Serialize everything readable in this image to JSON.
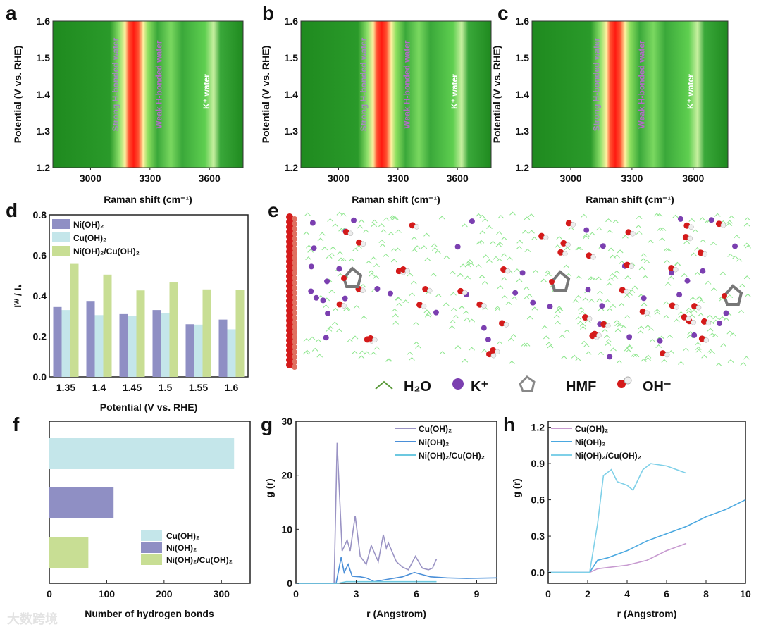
{
  "panel_labels": [
    "a",
    "b",
    "c",
    "d",
    "e",
    "f",
    "g",
    "h"
  ],
  "heatmaps": [
    {
      "label": "a",
      "xlabel": "Raman shift (cm⁻¹)",
      "ylabel": "Potential (V vs. RHE)",
      "xlim": [
        2810,
        3770
      ],
      "ylim": [
        1.2,
        1.6
      ],
      "xticks": [
        3000,
        3300,
        3600
      ],
      "yticks": [
        "1.2",
        "1.3",
        "1.4",
        "1.5",
        "1.6"
      ],
      "annotations": [
        "Strong H-bonded water",
        "Weak H-bonded water",
        "K⁺ water"
      ]
    },
    {
      "label": "b",
      "xlabel": "Raman shift (cm⁻¹)",
      "ylabel": "Potential (V vs. RHE)",
      "xlim": [
        2810,
        3770
      ],
      "ylim": [
        1.2,
        1.6
      ],
      "xticks": [
        3000,
        3300,
        3600
      ],
      "yticks": [
        "1.2",
        "1.3",
        "1.4",
        "1.5",
        "1.6"
      ],
      "annotations": [
        "Strong H-bonded water",
        "Weak H-bonded water",
        "K⁺ water"
      ]
    },
    {
      "label": "c",
      "xlabel": "Raman shift (cm⁻¹)",
      "ylabel": "Potential (V vs. RHE)",
      "xlim": [
        2810,
        3770
      ],
      "ylim": [
        1.2,
        1.6
      ],
      "xticks": [
        3000,
        3300,
        3600
      ],
      "yticks": [
        "1.2",
        "1.3",
        "1.4",
        "1.5",
        "1.6"
      ],
      "annotations": [
        "Strong H-bonded water",
        "Weak H-bonded water",
        "K⁺ water"
      ]
    }
  ],
  "molecular_panel": {
    "label": "e",
    "legend": [
      {
        "icon": "water-zigzag-icon",
        "text": "H₂O"
      },
      {
        "icon": "potassium-sphere-icon",
        "text": "K⁺"
      },
      {
        "icon": "hmf-molecule-icon",
        "text": "HMF"
      },
      {
        "icon": "hydroxide-icon",
        "text": "OH⁻"
      }
    ],
    "colors": {
      "water": "#8ee68e",
      "potassium": "#7b3fb0",
      "oxygen": "#d41a1a",
      "hydrogen": "#eeeeee",
      "carbon": "#777777"
    }
  },
  "chart_data": [
    {
      "panel": "d",
      "type": "bar",
      "categories": [
        "1.35",
        "1.4",
        "1.45",
        "1.5",
        "1.55",
        "1.6"
      ],
      "series": [
        {
          "name": "Ni(OH)₂",
          "color": "#8f8fc4",
          "values": [
            0.345,
            0.375,
            0.31,
            0.33,
            0.26,
            0.283
          ]
        },
        {
          "name": "Cu(OH)₂",
          "color": "#c4e6ea",
          "values": [
            0.33,
            0.305,
            0.3,
            0.315,
            0.258,
            0.235
          ]
        },
        {
          "name": "Ni(OH)₂/Cu(OH)₂",
          "color": "#c8de94",
          "values": [
            0.558,
            0.505,
            0.427,
            0.466,
            0.432,
            0.43
          ]
        }
      ],
      "xlabel": "Potential (V vs. RHE)",
      "ylabel": "Iᵂ / Iₛ",
      "ylim": [
        0,
        0.8
      ],
      "yticks": [
        "0.0",
        "0.2",
        "0.4",
        "0.6",
        "0.8"
      ],
      "legend": "top-left"
    },
    {
      "panel": "f",
      "type": "bar",
      "orientation": "horizontal",
      "series": [
        {
          "name": "Cu(OH)₂",
          "color": "#c4e6ea",
          "value": 322
        },
        {
          "name": "Ni(OH)₂",
          "color": "#8f8fc4",
          "value": 112
        },
        {
          "name": "Ni(OH)₂/Cu(OH)₂",
          "color": "#c8de94",
          "value": 68
        }
      ],
      "xlabel": "Number of hydrogen bonds",
      "xlim": [
        0,
        350
      ],
      "xticks": [
        "0",
        "100",
        "200",
        "300"
      ],
      "legend": "bottom-right"
    },
    {
      "panel": "g",
      "type": "line",
      "xlabel": "r (Angstrom)",
      "ylabel": "g (r)",
      "xlim": [
        0,
        10
      ],
      "ylim": [
        0,
        30
      ],
      "xticks": [
        "0",
        "3",
        "6",
        "9"
      ],
      "yticks": [
        "0",
        "10",
        "20",
        "30"
      ],
      "legend": "top-right",
      "series": [
        {
          "name": "Cu(OH)₂",
          "color": "#9a93c4",
          "x": [
            0,
            1.9,
            2.05,
            2.3,
            2.55,
            2.7,
            2.95,
            3.2,
            3.5,
            3.75,
            4.1,
            4.35,
            4.5,
            4.6,
            5.0,
            5.3,
            5.6,
            5.95,
            6.3,
            6.6,
            6.8,
            7.0
          ],
          "y": [
            0,
            0,
            26,
            6,
            8,
            6,
            12.5,
            5,
            3.5,
            7,
            4,
            9,
            6.5,
            7.5,
            4,
            3,
            2.5,
            5,
            2.8,
            2.5,
            2.8,
            4.5
          ]
        },
        {
          "name": "Ni(OH)₂",
          "color": "#4a8fd8",
          "x": [
            0,
            2.0,
            2.25,
            2.4,
            2.6,
            2.8,
            3.2,
            3.5,
            3.9,
            4.5,
            5.3,
            5.9,
            6.3,
            6.7,
            7.5,
            8.5,
            10
          ],
          "y": [
            0,
            0,
            4.8,
            2,
            3.5,
            1.3,
            1.2,
            1.0,
            0.3,
            0.7,
            1.2,
            2.0,
            1.6,
            1.2,
            1.0,
            0.9,
            1.0
          ]
        },
        {
          "name": "Ni(OH)₂/Cu(OH)₂",
          "color": "#6cc8e0",
          "x": [
            0,
            2.1,
            2.5,
            7
          ],
          "y": [
            0,
            0,
            0.3,
            0.3
          ]
        }
      ]
    },
    {
      "panel": "h",
      "type": "line",
      "xlabel": "r (Angstrom)",
      "ylabel": "g (r)",
      "xlim": [
        0,
        10
      ],
      "ylim": [
        -0.09,
        1.25
      ],
      "xticks": [
        "0",
        "2",
        "4",
        "6",
        "8",
        "10"
      ],
      "yticks": [
        "0.0",
        "0.3",
        "0.6",
        "0.9",
        "1.2"
      ],
      "legend": "top-left",
      "series": [
        {
          "name": "Cu(OH)₂",
          "color": "#c79ad0",
          "x": [
            0,
            2.1,
            2.5,
            3,
            4,
            5,
            6,
            7
          ],
          "y": [
            0,
            0,
            0.03,
            0.04,
            0.06,
            0.1,
            0.18,
            0.24
          ]
        },
        {
          "name": "Ni(OH)₂",
          "color": "#4aa8e0",
          "x": [
            0,
            2.1,
            2.5,
            3,
            4,
            5,
            6,
            7,
            8,
            9,
            10
          ],
          "y": [
            0,
            0,
            0.1,
            0.12,
            0.18,
            0.26,
            0.32,
            0.38,
            0.46,
            0.52,
            0.6
          ]
        },
        {
          "name": "Ni(OH)₂/Cu(OH)₂",
          "color": "#7fd0e8",
          "x": [
            0,
            2.1,
            2.5,
            2.8,
            3.2,
            3.5,
            4,
            4.3,
            4.8,
            5.2,
            6,
            6.5,
            7
          ],
          "y": [
            0,
            0,
            0.4,
            0.8,
            0.85,
            0.75,
            0.72,
            0.68,
            0.85,
            0.9,
            0.88,
            0.85,
            0.82
          ]
        }
      ]
    }
  ],
  "watermark": "大数跨境"
}
